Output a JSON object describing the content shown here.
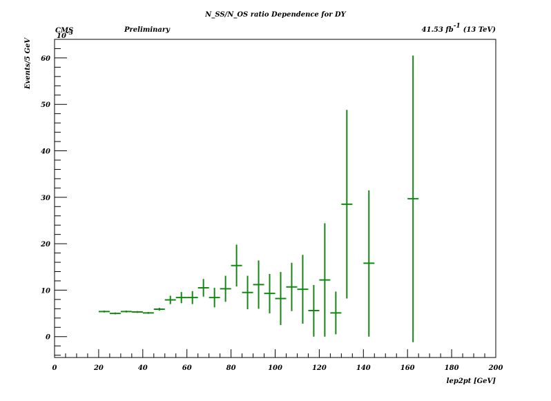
{
  "chart_data": {
    "type": "scatter",
    "title": "N_SS/N_OS ratio Dependence for DY",
    "experiment_label": "CMS",
    "status_label": "Preliminary",
    "lumi_label": "41.53 fb",
    "lumi_exponent": "-1",
    "energy_label": "(13 TeV)",
    "xlabel": "lep2pt [GeV]",
    "ylabel": "Events/5 GeV",
    "y_multiplier": "10",
    "y_multiplier_exp": "-3",
    "xlim": [
      0,
      200
    ],
    "ylim": [
      -4.5,
      64
    ],
    "x_ticks": [
      0,
      20,
      40,
      60,
      80,
      100,
      120,
      140,
      160,
      180,
      200
    ],
    "y_ticks": [
      0,
      10,
      20,
      30,
      40,
      50,
      60
    ],
    "grid": false,
    "series_color": "#118811",
    "points": [
      {
        "x": 22.5,
        "xerr": 2.5,
        "y": 5.4,
        "ylo": 5.2,
        "yhi": 5.6
      },
      {
        "x": 27.5,
        "xerr": 2.5,
        "y": 5.0,
        "ylo": 4.8,
        "yhi": 5.2
      },
      {
        "x": 32.5,
        "xerr": 2.5,
        "y": 5.4,
        "ylo": 5.2,
        "yhi": 5.6
      },
      {
        "x": 37.5,
        "xerr": 2.5,
        "y": 5.3,
        "ylo": 5.1,
        "yhi": 5.5
      },
      {
        "x": 42.5,
        "xerr": 2.5,
        "y": 5.1,
        "ylo": 4.9,
        "yhi": 5.3
      },
      {
        "x": 47.5,
        "xerr": 2.5,
        "y": 5.9,
        "ylo": 5.6,
        "yhi": 6.2
      },
      {
        "x": 52.5,
        "xerr": 2.5,
        "y": 7.9,
        "ylo": 7.0,
        "yhi": 8.8
      },
      {
        "x": 57.5,
        "xerr": 2.5,
        "y": 8.4,
        "ylo": 7.2,
        "yhi": 9.6
      },
      {
        "x": 62.5,
        "xerr": 2.5,
        "y": 8.4,
        "ylo": 7.0,
        "yhi": 9.8
      },
      {
        "x": 67.5,
        "xerr": 2.5,
        "y": 10.5,
        "ylo": 8.6,
        "yhi": 12.4
      },
      {
        "x": 72.5,
        "xerr": 2.5,
        "y": 8.4,
        "ylo": 6.3,
        "yhi": 10.5
      },
      {
        "x": 77.5,
        "xerr": 2.5,
        "y": 10.3,
        "ylo": 7.5,
        "yhi": 13.1
      },
      {
        "x": 82.5,
        "xerr": 2.5,
        "y": 15.3,
        "ylo": 10.8,
        "yhi": 19.8
      },
      {
        "x": 87.5,
        "xerr": 2.5,
        "y": 9.5,
        "ylo": 5.9,
        "yhi": 13.1
      },
      {
        "x": 92.5,
        "xerr": 2.5,
        "y": 11.2,
        "ylo": 6.0,
        "yhi": 16.4
      },
      {
        "x": 97.5,
        "xerr": 2.5,
        "y": 9.3,
        "ylo": 5.0,
        "yhi": 13.5
      },
      {
        "x": 102.5,
        "xerr": 2.5,
        "y": 8.2,
        "ylo": 2.5,
        "yhi": 13.9
      },
      {
        "x": 107.5,
        "xerr": 2.5,
        "y": 10.7,
        "ylo": 5.5,
        "yhi": 15.9
      },
      {
        "x": 112.5,
        "xerr": 2.5,
        "y": 10.2,
        "ylo": 2.8,
        "yhi": 17.6
      },
      {
        "x": 117.5,
        "xerr": 2.5,
        "y": 5.6,
        "ylo": 0.0,
        "yhi": 11.1
      },
      {
        "x": 122.5,
        "xerr": 2.5,
        "y": 12.2,
        "ylo": 0.0,
        "yhi": 24.4
      },
      {
        "x": 127.5,
        "xerr": 2.5,
        "y": 5.1,
        "ylo": 0.5,
        "yhi": 9.7
      },
      {
        "x": 132.5,
        "xerr": 2.5,
        "y": 28.5,
        "ylo": 8.2,
        "yhi": 48.8
      },
      {
        "x": 142.5,
        "xerr": 2.5,
        "y": 15.8,
        "ylo": 0.0,
        "yhi": 31.5
      },
      {
        "x": 162.5,
        "xerr": 2.5,
        "y": 29.7,
        "ylo": -1.2,
        "yhi": 60.5
      }
    ]
  }
}
